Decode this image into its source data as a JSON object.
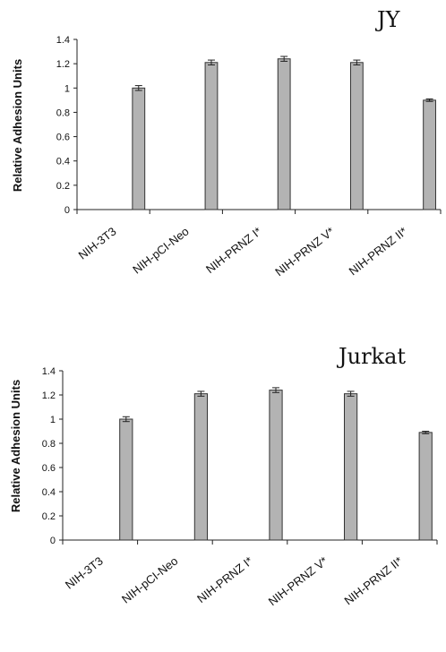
{
  "chart_data": [
    {
      "type": "bar",
      "title": "JY",
      "ylabel": "Relative Adhesion Units",
      "xlabel": "",
      "categories": [
        "NIH-3T3",
        "NIH-pCI-Neo",
        "NIH-PRNZ I*",
        "NIH-PRNZ V*",
        "NIH-PRNZ II*"
      ],
      "values": [
        1.0,
        1.21,
        1.24,
        1.21,
        0.9
      ],
      "errors": [
        0.02,
        0.02,
        0.02,
        0.02,
        0.01
      ],
      "ylim": [
        0,
        1.4
      ],
      "yticks": [
        "0",
        "0.2",
        "0.4",
        "0.6",
        "0.8",
        "1",
        "1.2",
        "1.4"
      ],
      "bar_color": "#b3b3b3",
      "grid": false,
      "legend": "none"
    },
    {
      "type": "bar",
      "title": "Jurkat",
      "ylabel": "Relative Adhesion Units",
      "xlabel": "",
      "categories": [
        "NIH-3T3",
        "NIH-pCI-Neo",
        "NIH-PRNZ I*",
        "NIH-PRNZ V*",
        "NIH-PRNZ II*"
      ],
      "values": [
        1.0,
        1.21,
        1.24,
        1.21,
        0.89
      ],
      "errors": [
        0.02,
        0.02,
        0.02,
        0.02,
        0.01
      ],
      "ylim": [
        0,
        1.4
      ],
      "yticks": [
        "0",
        "0.2",
        "0.4",
        "0.6",
        "0.8",
        "1",
        "1.2",
        "1.4"
      ],
      "bar_color": "#b3b3b3",
      "grid": false,
      "legend": "none"
    }
  ]
}
